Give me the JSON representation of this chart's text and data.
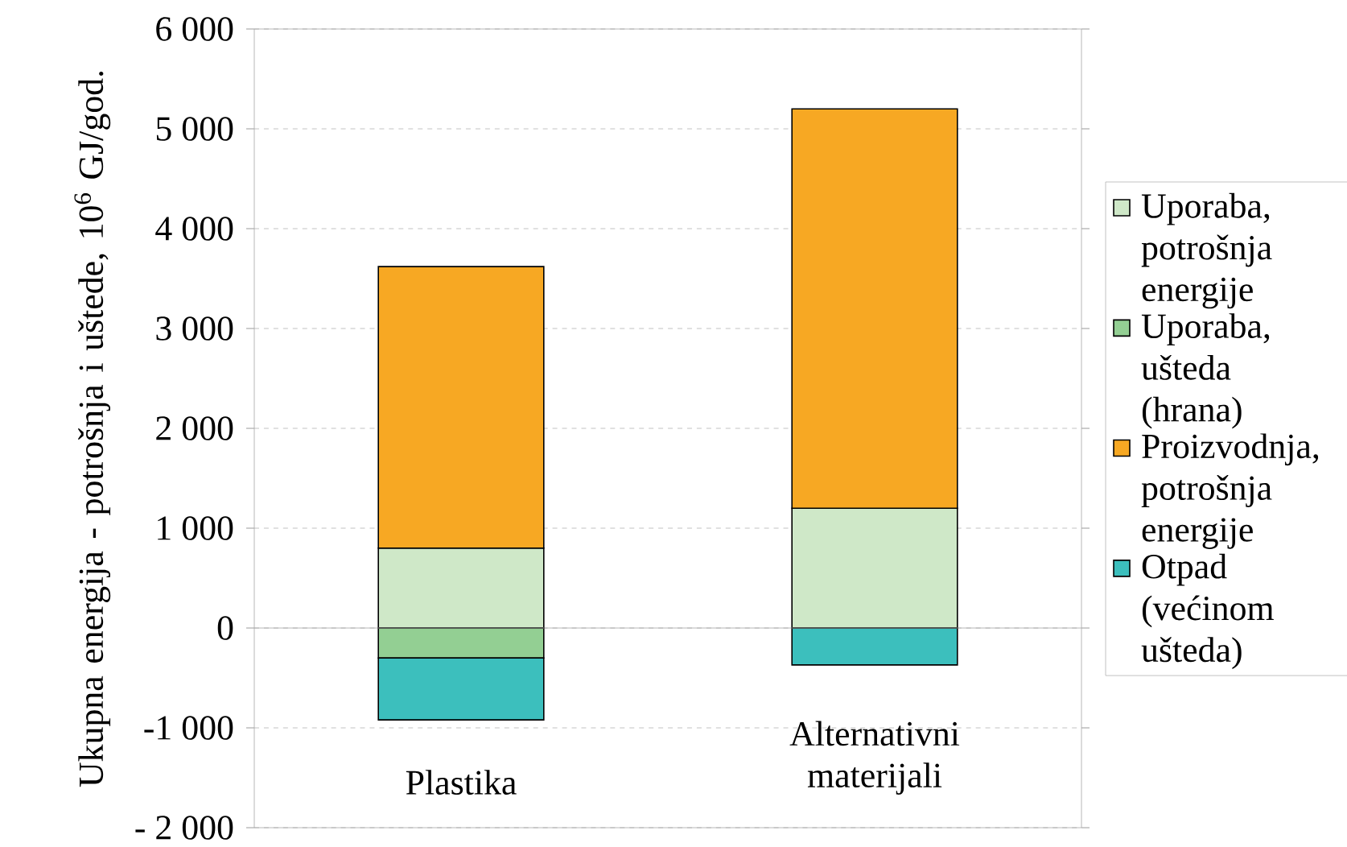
{
  "chart_data": {
    "type": "bar",
    "stacked": true,
    "ylabel": "Ukupna energija - potrošnja i uštede, 10$^{6}$ GJ/god.",
    "categories": [
      "Plastika",
      "Alternativni materijali"
    ],
    "series": [
      {
        "name": "Uporaba, potrošnja energije",
        "color": "#cfe8c8",
        "values": [
          800,
          1200
        ]
      },
      {
        "name": "Uporaba, ušteda (hrana)",
        "color": "#93cf93",
        "values": [
          -300,
          0
        ]
      },
      {
        "name": "Proizvodnja, potrošnja energije",
        "color": "#f7a823",
        "values": [
          2820,
          4000
        ]
      },
      {
        "name": "Otpad (većinom ušteda)",
        "color": "#3cbfbd",
        "values": [
          -620,
          -370
        ]
      }
    ],
    "ylim": [
      -2000,
      6000
    ],
    "yticks": [
      {
        "value": -2000,
        "label": "- 2 000"
      },
      {
        "value": -1000,
        "label": "-1 000"
      },
      0,
      {
        "value": 1000,
        "label": "1 000"
      },
      {
        "value": 2000,
        "label": "2 000"
      },
      {
        "value": 3000,
        "label": "3 000"
      },
      {
        "value": 4000,
        "label": "4 000"
      },
      {
        "value": 5000,
        "label": "5 000"
      },
      {
        "value": 6000,
        "label": "6 000"
      }
    ],
    "grid": "y",
    "legend": "right"
  }
}
